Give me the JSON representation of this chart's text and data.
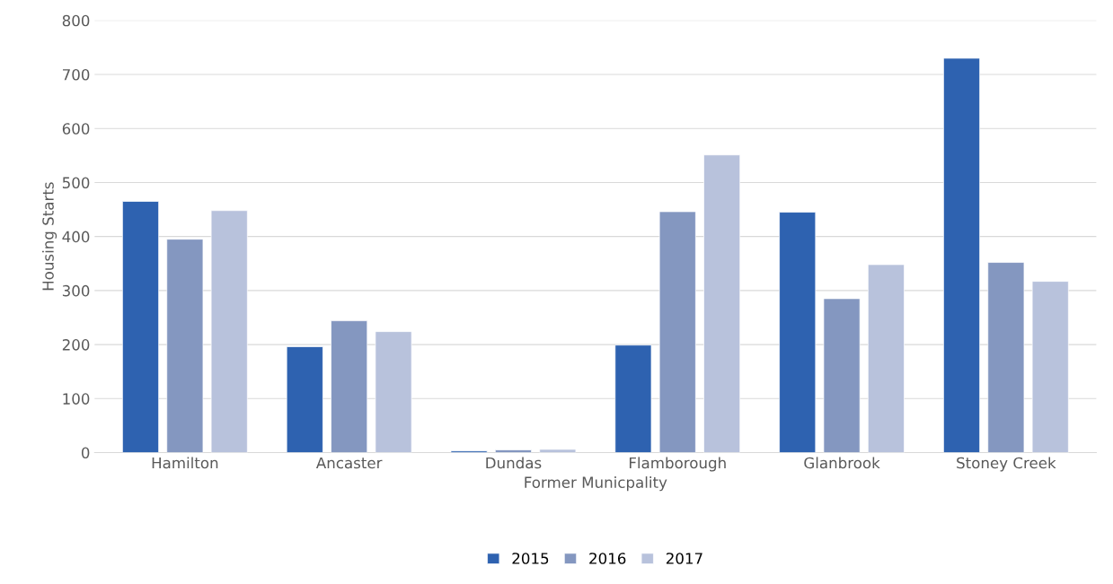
{
  "chart_data": {
    "type": "bar",
    "xlabel": "Former Municpality",
    "ylabel": "Housing Starts",
    "categories": [
      "Hamilton",
      "Ancaster",
      "Dundas",
      "Flamborough",
      "Glanbrook",
      "Stoney Creek"
    ],
    "series": [
      {
        "name": "2015",
        "color": "#2e62b0",
        "values": [
          465,
          196,
          3,
          199,
          445,
          730
        ]
      },
      {
        "name": "2016",
        "color": "#8497c0",
        "values": [
          395,
          244,
          5,
          446,
          285,
          352
        ]
      },
      {
        "name": "2017",
        "color": "#b8c2dc",
        "values": [
          448,
          224,
          6,
          551,
          348,
          317
        ]
      }
    ],
    "ylim": [
      0,
      800
    ],
    "yticks": [
      0,
      100,
      200,
      300,
      400,
      500,
      600,
      700,
      800
    ],
    "grid": "y",
    "legend": "bottom"
  }
}
